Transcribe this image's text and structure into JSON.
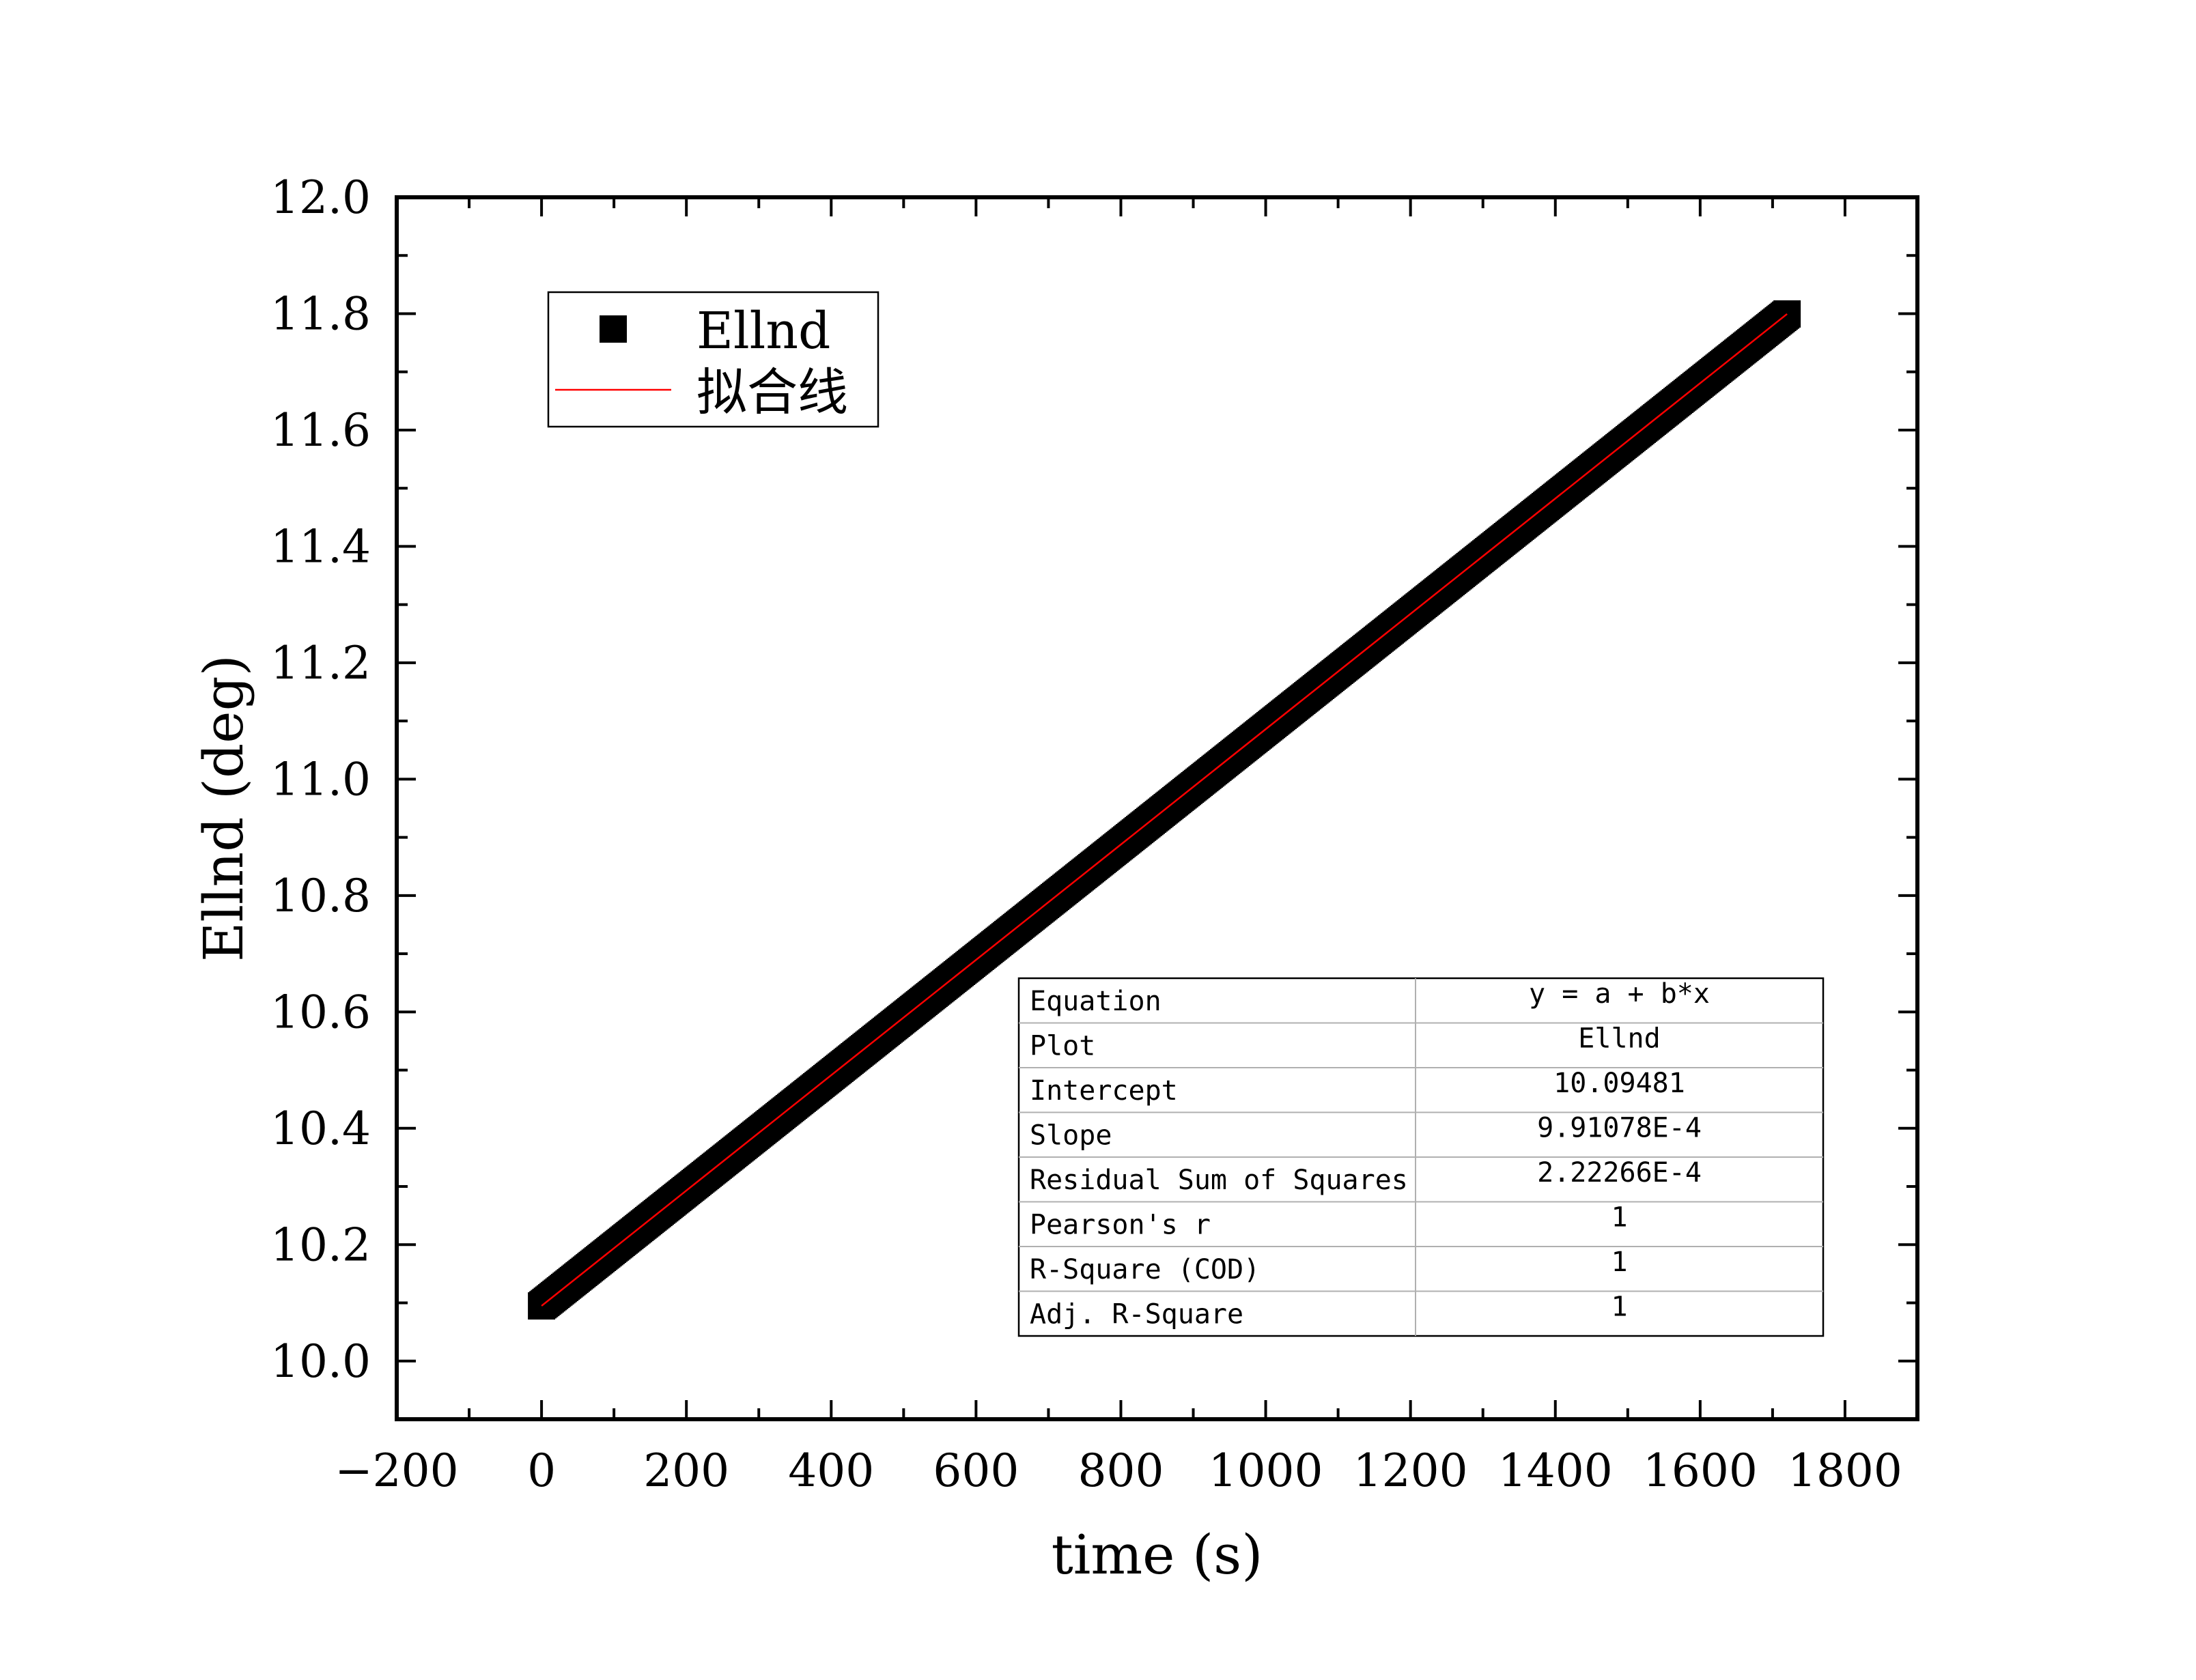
{
  "chart_data": {
    "type": "scatter",
    "xlabel": "time (s)",
    "ylabel": "Ellnd (deg)",
    "xlim": [
      -200,
      1900
    ],
    "ylim": [
      9.9,
      12.0
    ],
    "x_ticks": [
      -200,
      0,
      200,
      400,
      600,
      800,
      1000,
      1200,
      1400,
      1600,
      1800
    ],
    "x_tick_labels": [
      "−200",
      "0",
      "200",
      "400",
      "600",
      "800",
      "1000",
      "1200",
      "1400",
      "1600",
      "1800"
    ],
    "y_ticks": [
      10.0,
      10.2,
      10.4,
      10.6,
      10.8,
      11.0,
      11.2,
      11.4,
      11.6,
      11.8,
      12.0
    ],
    "y_tick_labels": [
      "10.0",
      "10.2",
      "10.4",
      "10.6",
      "10.8",
      "11.0",
      "11.2",
      "11.4",
      "11.6",
      "11.8",
      "12.0"
    ],
    "series": [
      {
        "name": "Ellnd",
        "kind": "scatter",
        "marker": "square",
        "color": "#000000",
        "x_range": [
          0,
          1720
        ],
        "intercept": 10.09481,
        "slope": 0.000991078
      },
      {
        "name": "拟合线",
        "kind": "line",
        "color": "#ff0000",
        "x": [
          0,
          1720
        ],
        "y": [
          10.09481,
          11.79946
        ]
      }
    ],
    "legend": {
      "position": "top-left"
    },
    "grid": false,
    "fit_table": {
      "rows": [
        [
          "Equation",
          "y = a + b*x"
        ],
        [
          "Plot",
          "Ellnd"
        ],
        [
          "Intercept",
          "10.09481"
        ],
        [
          "Slope",
          "9.91078E-4"
        ],
        [
          "Residual Sum of Squares",
          "2.22266E-4"
        ],
        [
          "Pearson's r",
          "1"
        ],
        [
          "R-Square (COD)",
          "1"
        ],
        [
          "Adj. R-Square",
          "1"
        ]
      ],
      "position": "bottom-right"
    }
  }
}
